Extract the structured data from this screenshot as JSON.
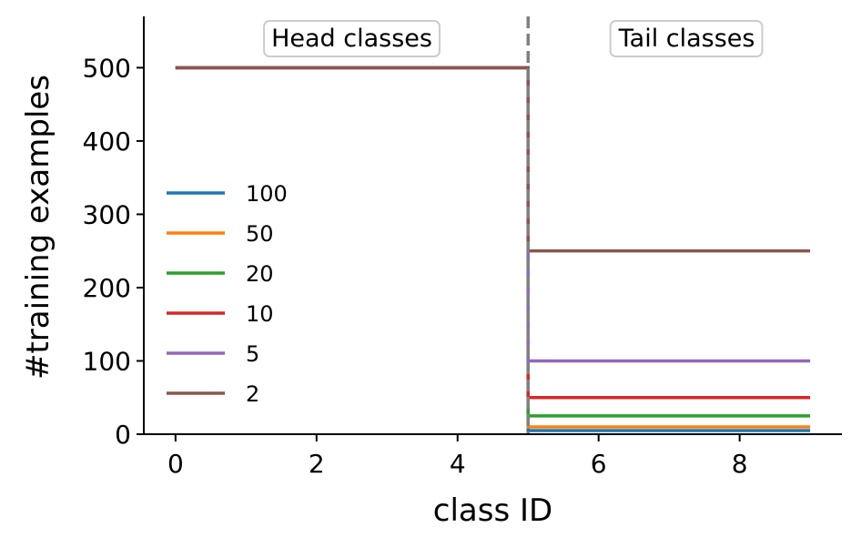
{
  "chart_data": {
    "type": "line",
    "xlabel": "class ID",
    "ylabel": "#training examples",
    "xlim": [
      -0.45,
      9.45
    ],
    "ylim": [
      0,
      570
    ],
    "xticks": [
      0,
      2,
      4,
      6,
      8
    ],
    "yticks": [
      0,
      100,
      200,
      300,
      400,
      500
    ],
    "grid": false,
    "legend_position": "center-left",
    "divider": {
      "x": 5,
      "style": "dashed",
      "color": "#808080"
    },
    "regions": [
      {
        "label": "Head classes",
        "x": 2.5
      },
      {
        "label": "Tail classes",
        "x": 7.25
      }
    ],
    "series": [
      {
        "name": "100",
        "color": "#1f77b4",
        "head": 500,
        "tail": 5
      },
      {
        "name": "50",
        "color": "#ff7f0e",
        "head": 500,
        "tail": 10
      },
      {
        "name": "20",
        "color": "#2ca02c",
        "head": 500,
        "tail": 25
      },
      {
        "name": "10",
        "color": "#d62728",
        "head": 500,
        "tail": 50
      },
      {
        "name": "5",
        "color": "#9467bd",
        "head": 500,
        "tail": 100
      },
      {
        "name": "2",
        "color": "#8c564b",
        "head": 500,
        "tail": 250
      }
    ],
    "step": {
      "x_start": 0,
      "x_change": 5,
      "x_end": 9
    }
  }
}
